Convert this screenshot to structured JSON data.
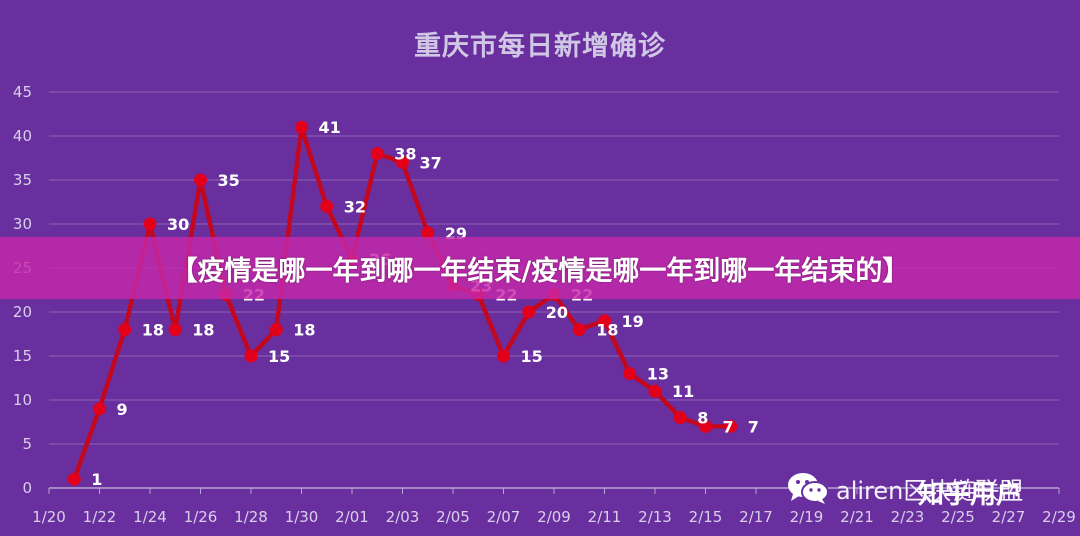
{
  "chart_data": {
    "type": "line",
    "title": "重庆市每日新增确诊",
    "xlabel": "",
    "ylabel": "",
    "ylim": [
      0,
      45
    ],
    "yticks": [
      0,
      5,
      10,
      15,
      20,
      25,
      30,
      35,
      40,
      45
    ],
    "grid": true,
    "x_tick_labels": [
      "1/20",
      "1/22",
      "1/24",
      "1/26",
      "1/28",
      "1/30",
      "2/01",
      "2/03",
      "2/05",
      "2/07",
      "2/09",
      "2/11",
      "2/13",
      "2/15",
      "2/17",
      "2/19",
      "2/21",
      "2/23",
      "2/25",
      "2/27",
      "2/29"
    ],
    "x": [
      "1/21",
      "1/22",
      "1/23",
      "1/24",
      "1/25",
      "1/26",
      "1/27",
      "1/28",
      "1/29",
      "1/30",
      "1/31",
      "2/01",
      "2/02",
      "2/03",
      "2/04",
      "2/05",
      "2/06",
      "2/07",
      "2/08",
      "2/09",
      "2/10",
      "2/11",
      "2/12",
      "2/13",
      "2/14",
      "2/15",
      "2/16"
    ],
    "series": [
      {
        "values": [
          1,
          9,
          18,
          30,
          18,
          35,
          22,
          15,
          18,
          41,
          32,
          26,
          38,
          37,
          29,
          23,
          22,
          15,
          20,
          22,
          18,
          19,
          13,
          11,
          8,
          7,
          7
        ],
        "color": "#d0021b"
      }
    ]
  },
  "colors": {
    "background": "#6a2f9e",
    "line": "#c3071f",
    "grid": "#8c64b4",
    "axis_text": "#d8d0ea",
    "label_text": "#ffffff",
    "banner": "#c428aa"
  },
  "banner": {
    "text": "【疫情是哪一年到哪一年结束/疫情是哪一年到哪一年结束的】"
  },
  "watermark": {
    "icon": "wechat-icon",
    "text": "aliren区块链联盟"
  },
  "overlay_watermark": {
    "text": "知乎用户"
  }
}
